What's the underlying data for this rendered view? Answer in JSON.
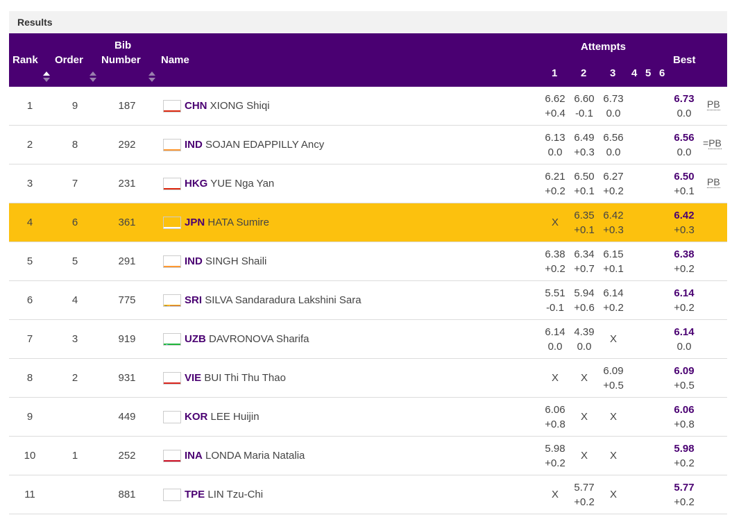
{
  "section_title": "Results",
  "header": {
    "rank": "Rank",
    "order": "Order",
    "bib_line1": "Bib",
    "bib_line2": "Number",
    "name": "Name",
    "attempts": "Attempts",
    "att1": "1",
    "att2": "2",
    "att3": "3",
    "att4": "4",
    "att5": "5",
    "att6": "6",
    "best": "Best"
  },
  "rows": [
    {
      "rank": "1",
      "order": "9",
      "bib": "187",
      "flag": "CHN",
      "country": "CHN",
      "name": "XIONG Shiqi",
      "a1": [
        "6.62",
        "+0.4"
      ],
      "a2": [
        "6.60",
        "-0.1"
      ],
      "a3": [
        "6.73",
        "0.0"
      ],
      "best": [
        "6.73",
        "0.0"
      ],
      "pb": "PB",
      "pb_prefix": ""
    },
    {
      "rank": "2",
      "order": "8",
      "bib": "292",
      "flag": "IND",
      "country": "IND",
      "name": "SOJAN EDAPPILLY Ancy",
      "a1": [
        "6.13",
        "0.0"
      ],
      "a2": [
        "6.49",
        "+0.3"
      ],
      "a3": [
        "6.56",
        "0.0"
      ],
      "best": [
        "6.56",
        "0.0"
      ],
      "pb": "PB",
      "pb_prefix": "="
    },
    {
      "rank": "3",
      "order": "7",
      "bib": "231",
      "flag": "HKG",
      "country": "HKG",
      "name": "YUE Nga Yan",
      "a1": [
        "6.21",
        "+0.2"
      ],
      "a2": [
        "6.50",
        "+0.1"
      ],
      "a3": [
        "6.27",
        "+0.2"
      ],
      "best": [
        "6.50",
        "+0.1"
      ],
      "pb": "PB",
      "pb_prefix": ""
    },
    {
      "rank": "4",
      "order": "6",
      "bib": "361",
      "flag": "JPN",
      "country": "JPN",
      "name": "HATA Sumire",
      "a1": [
        "X",
        ""
      ],
      "a2": [
        "6.35",
        "+0.1"
      ],
      "a3": [
        "6.42",
        "+0.3"
      ],
      "best": [
        "6.42",
        "+0.3"
      ],
      "pb": "",
      "pb_prefix": "",
      "highlight": true
    },
    {
      "rank": "5",
      "order": "5",
      "bib": "291",
      "flag": "IND",
      "country": "IND",
      "name": "SINGH Shaili",
      "a1": [
        "6.38",
        "+0.2"
      ],
      "a2": [
        "6.34",
        "+0.7"
      ],
      "a3": [
        "6.15",
        "+0.1"
      ],
      "best": [
        "6.38",
        "+0.2"
      ],
      "pb": "",
      "pb_prefix": ""
    },
    {
      "rank": "6",
      "order": "4",
      "bib": "775",
      "flag": "SRI",
      "country": "SRI",
      "name": "SILVA Sandaradura Lakshini Sara",
      "a1": [
        "5.51",
        "-0.1"
      ],
      "a2": [
        "5.94",
        "+0.6"
      ],
      "a3": [
        "6.14",
        "+0.2"
      ],
      "best": [
        "6.14",
        "+0.2"
      ],
      "pb": "",
      "pb_prefix": ""
    },
    {
      "rank": "7",
      "order": "3",
      "bib": "919",
      "flag": "UZB",
      "country": "UZB",
      "name": "DAVRONOVA Sharifa",
      "a1": [
        "6.14",
        "0.0"
      ],
      "a2": [
        "4.39",
        "0.0"
      ],
      "a3": [
        "X",
        ""
      ],
      "best": [
        "6.14",
        "0.0"
      ],
      "pb": "",
      "pb_prefix": ""
    },
    {
      "rank": "8",
      "order": "2",
      "bib": "931",
      "flag": "VIE",
      "country": "VIE",
      "name": "BUI Thi Thu Thao",
      "a1": [
        "X",
        ""
      ],
      "a2": [
        "X",
        ""
      ],
      "a3": [
        "6.09",
        "+0.5"
      ],
      "best": [
        "6.09",
        "+0.5"
      ],
      "pb": "",
      "pb_prefix": ""
    },
    {
      "rank": "9",
      "order": "",
      "bib": "449",
      "flag": "KOR",
      "country": "KOR",
      "name": "LEE Huijin",
      "a1": [
        "6.06",
        "+0.8"
      ],
      "a2": [
        "X",
        ""
      ],
      "a3": [
        "X",
        ""
      ],
      "best": [
        "6.06",
        "+0.8"
      ],
      "pb": "",
      "pb_prefix": ""
    },
    {
      "rank": "10",
      "order": "1",
      "bib": "252",
      "flag": "INA",
      "country": "INA",
      "name": "LONDA Maria Natalia",
      "a1": [
        "5.98",
        "+0.2"
      ],
      "a2": [
        "X",
        ""
      ],
      "a3": [
        "X",
        ""
      ],
      "best": [
        "5.98",
        "+0.2"
      ],
      "pb": "",
      "pb_prefix": ""
    },
    {
      "rank": "11",
      "order": "",
      "bib": "881",
      "flag": "TPE",
      "country": "TPE",
      "name": "LIN Tzu-Chi",
      "a1": [
        "X",
        ""
      ],
      "a2": [
        "5.77",
        "+0.2"
      ],
      "a3": [
        "X",
        ""
      ],
      "best": [
        "5.77",
        "+0.2"
      ],
      "pb": "",
      "pb_prefix": ""
    }
  ],
  "colors": {
    "header_bg": "#4a0072",
    "highlight": "#fcc10e",
    "country_text": "#4a0072"
  }
}
